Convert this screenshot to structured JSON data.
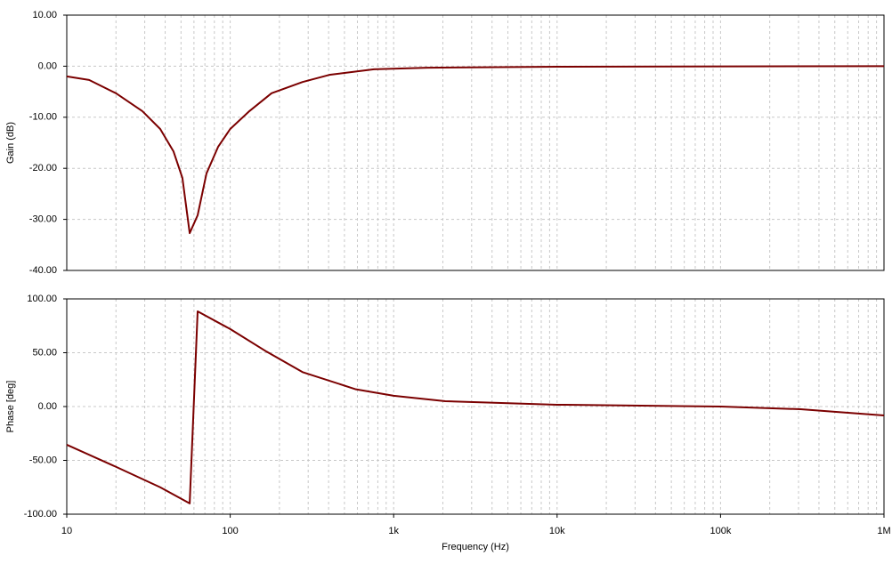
{
  "chart_data": [
    {
      "type": "line",
      "y_label": "Gain (dB)",
      "log_x": true,
      "grid": true,
      "color": "#7b0000",
      "xlim": [
        10,
        1000000
      ],
      "ylim": [
        -40,
        10
      ],
      "yticks": [
        {
          "value": 10,
          "label": "10.00"
        },
        {
          "value": 0,
          "label": "0.00"
        },
        {
          "value": -10,
          "label": "-10.00"
        },
        {
          "value": -20,
          "label": "-20.00"
        },
        {
          "value": -30,
          "label": "-30.00"
        },
        {
          "value": -40,
          "label": "-40.00"
        }
      ],
      "x": [
        10,
        13.7,
        20,
        29,
        37.3,
        45,
        51,
        56.5,
        63.2,
        71.6,
        84.3,
        100,
        131,
        179,
        277,
        404,
        757,
        1607,
        10000,
        1000000
      ],
      "values": [
        -2.0,
        -2.7,
        -5.3,
        -8.8,
        -12.3,
        -16.7,
        -21.9,
        -32.7,
        -29.2,
        -21.0,
        -15.8,
        -12.3,
        -8.8,
        -5.3,
        -3.1,
        -1.7,
        -0.6,
        -0.3,
        -0.1,
        0.0
      ]
    },
    {
      "type": "line",
      "y_label": "Phase [deg]",
      "x_label": "Frequency (Hz)",
      "log_x": true,
      "grid": true,
      "color": "#7b0000",
      "xlim": [
        10,
        1000000
      ],
      "xticks": [
        10,
        100,
        {
          "value": 1000,
          "label": "1k"
        },
        {
          "value": 10000,
          "label": "10k"
        },
        {
          "value": 100000,
          "label": "100k"
        },
        {
          "value": 1000000,
          "label": "1M"
        }
      ],
      "ylim": [
        -100,
        100
      ],
      "yticks": [
        {
          "value": 100,
          "label": "100.00"
        },
        {
          "value": 50,
          "label": "50.00"
        },
        {
          "value": 0,
          "label": "0.00"
        },
        {
          "value": -50,
          "label": "-50.00"
        },
        {
          "value": -100,
          "label": "-100.00"
        }
      ],
      "x": [
        10,
        20,
        37.3,
        56.5,
        63.2,
        100,
        167,
        277,
        588,
        1000,
        2070,
        10000,
        100000,
        309000,
        509000,
        1000000
      ],
      "values": [
        -35.5,
        -56,
        -75,
        -90,
        88.4,
        72,
        51,
        32,
        16,
        10,
        5,
        1.7,
        0,
        -2.5,
        -5,
        -8.3
      ]
    }
  ]
}
